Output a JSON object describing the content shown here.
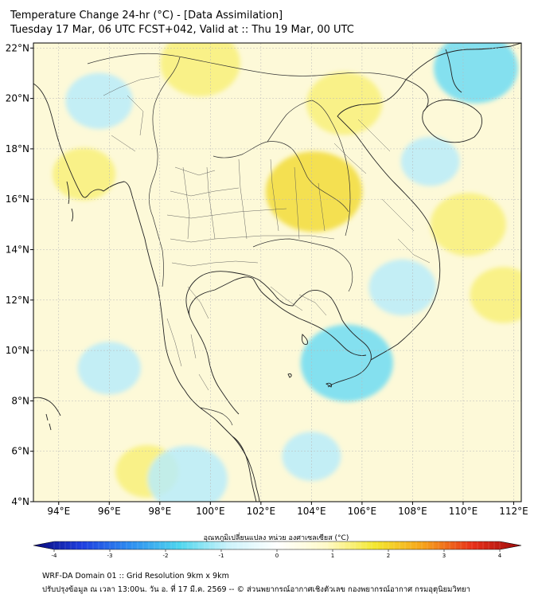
{
  "header": {
    "title": "Temperature Change 24-hr (°C) - [Data Assimilation]",
    "subtitle": "Tuesday 17 Mar, 06 UTC FCST+042, Valid at :: Thu 19 Mar, 00 UTC"
  },
  "map": {
    "lon_range": [
      93,
      112.3
    ],
    "lat_range": [
      4,
      22.2
    ],
    "lat_ticks": [
      "22°N",
      "20°N",
      "18°N",
      "16°N",
      "14°N",
      "12°N",
      "10°N",
      "8°N",
      "6°N",
      "4°N"
    ],
    "lat_values": [
      22,
      20,
      18,
      16,
      14,
      12,
      10,
      8,
      6,
      4
    ],
    "lon_ticks": [
      "94°E",
      "96°E",
      "98°E",
      "100°E",
      "102°E",
      "104°E",
      "106°E",
      "108°E",
      "110°E",
      "112°E"
    ],
    "lon_values": [
      94,
      96,
      98,
      100,
      102,
      104,
      106,
      108,
      110,
      112
    ],
    "warm_spots": [
      {
        "lon": 104.1,
        "lat": 16.3,
        "value": 1.3
      },
      {
        "lon": 99.6,
        "lat": 21.4,
        "value": 0.9
      },
      {
        "lon": 105.3,
        "lat": 19.8,
        "value": 0.8
      },
      {
        "lon": 110.2,
        "lat": 15.0,
        "value": 0.8
      },
      {
        "lon": 111.6,
        "lat": 12.2,
        "value": 0.6
      },
      {
        "lon": 95.0,
        "lat": 17.0,
        "value": 0.5
      },
      {
        "lon": 97.5,
        "lat": 5.2,
        "value": 0.5
      }
    ],
    "cool_spots": [
      {
        "lon": 105.4,
        "lat": 9.5,
        "value": -1.2
      },
      {
        "lon": 110.5,
        "lat": 21.2,
        "value": -1.0
      },
      {
        "lon": 95.6,
        "lat": 19.9,
        "value": -0.6
      },
      {
        "lon": 99.1,
        "lat": 4.9,
        "value": -0.9
      },
      {
        "lon": 107.6,
        "lat": 12.5,
        "value": -0.6
      },
      {
        "lon": 108.7,
        "lat": 17.5,
        "value": -0.4
      },
      {
        "lon": 96.0,
        "lat": 9.3,
        "value": -0.5
      },
      {
        "lon": 104.0,
        "lat": 5.8,
        "value": -0.4
      }
    ]
  },
  "colorbar": {
    "label": "อุณหภูมิเปลี่ยนแปลง หน่วย องศาเซลเซียส (°C)",
    "ticks": [
      "-4",
      "-3",
      "-2",
      "-1",
      "0",
      "1",
      "2",
      "3",
      "4"
    ],
    "tick_values": [
      -4,
      -3,
      -2,
      -1,
      0,
      1,
      2,
      3,
      4
    ],
    "range": [
      -4,
      4
    ],
    "colors": [
      "#0a0a7a",
      "#1f3fe0",
      "#2f8ff0",
      "#4fd6ee",
      "#cdf3fb",
      "#ffffff",
      "#fffac8",
      "#f4e830",
      "#f6a21c",
      "#e8301a",
      "#9c0c0c"
    ]
  },
  "footer": {
    "line1": "WRF-DA Domain 01 :: Grid Resolution 9km x 9km",
    "line2": "ปรับปรุงข้อมูล ณ เวลา 13:00น. วัน อ. ที่ 17 มี.ค. 2569 -- © ส่วนพยากรณ์อากาศเชิงตัวเลข กองพยากรณ์อากาศ กรมอุตุนิยมวิทยา"
  }
}
